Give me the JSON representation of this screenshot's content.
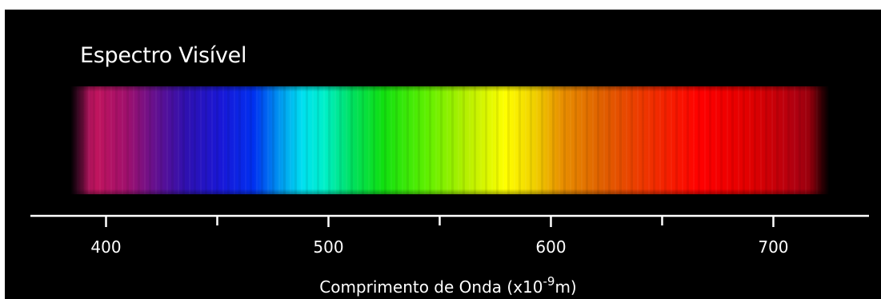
{
  "title": "Espectro Visível",
  "colors": {
    "page_background": "#ffffff",
    "panel_background": "#000000",
    "axis_color": "#ffffff",
    "text_color": "#ffffff"
  },
  "spectrum": {
    "range_nm": [
      380,
      720
    ],
    "gradient_stops": [
      {
        "nm": 380,
        "color": "#7a0f4e"
      },
      {
        "nm": 392,
        "color": "#c0145e"
      },
      {
        "nm": 405,
        "color": "#a0106c"
      },
      {
        "nm": 418,
        "color": "#64108f"
      },
      {
        "nm": 432,
        "color": "#2e10b0"
      },
      {
        "nm": 448,
        "color": "#1818d8"
      },
      {
        "nm": 462,
        "color": "#0030f0"
      },
      {
        "nm": 474,
        "color": "#0098f0"
      },
      {
        "nm": 484,
        "color": "#00e0f0"
      },
      {
        "nm": 494,
        "color": "#00f0c8"
      },
      {
        "nm": 506,
        "color": "#00e060"
      },
      {
        "nm": 520,
        "color": "#10e010"
      },
      {
        "nm": 540,
        "color": "#60f000"
      },
      {
        "nm": 558,
        "color": "#b8f000"
      },
      {
        "nm": 575,
        "color": "#ffff00"
      },
      {
        "nm": 588,
        "color": "#f0d000"
      },
      {
        "nm": 600,
        "color": "#e89000"
      },
      {
        "nm": 618,
        "color": "#e06000"
      },
      {
        "nm": 640,
        "color": "#f03000"
      },
      {
        "nm": 662,
        "color": "#ff0000"
      },
      {
        "nm": 685,
        "color": "#e00000"
      },
      {
        "nm": 705,
        "color": "#b00010"
      },
      {
        "nm": 720,
        "color": "#780008"
      }
    ]
  },
  "axis": {
    "min_nm": 366,
    "max_nm": 743,
    "major_ticks": [
      400,
      500,
      600,
      700
    ],
    "minor_ticks": [
      450,
      550,
      650
    ],
    "tick_labels": [
      "400",
      "500",
      "600",
      "700"
    ],
    "title_main": "Comprimento de Onda (x10",
    "title_superscript": "-9",
    "title_suffix": "m)"
  }
}
